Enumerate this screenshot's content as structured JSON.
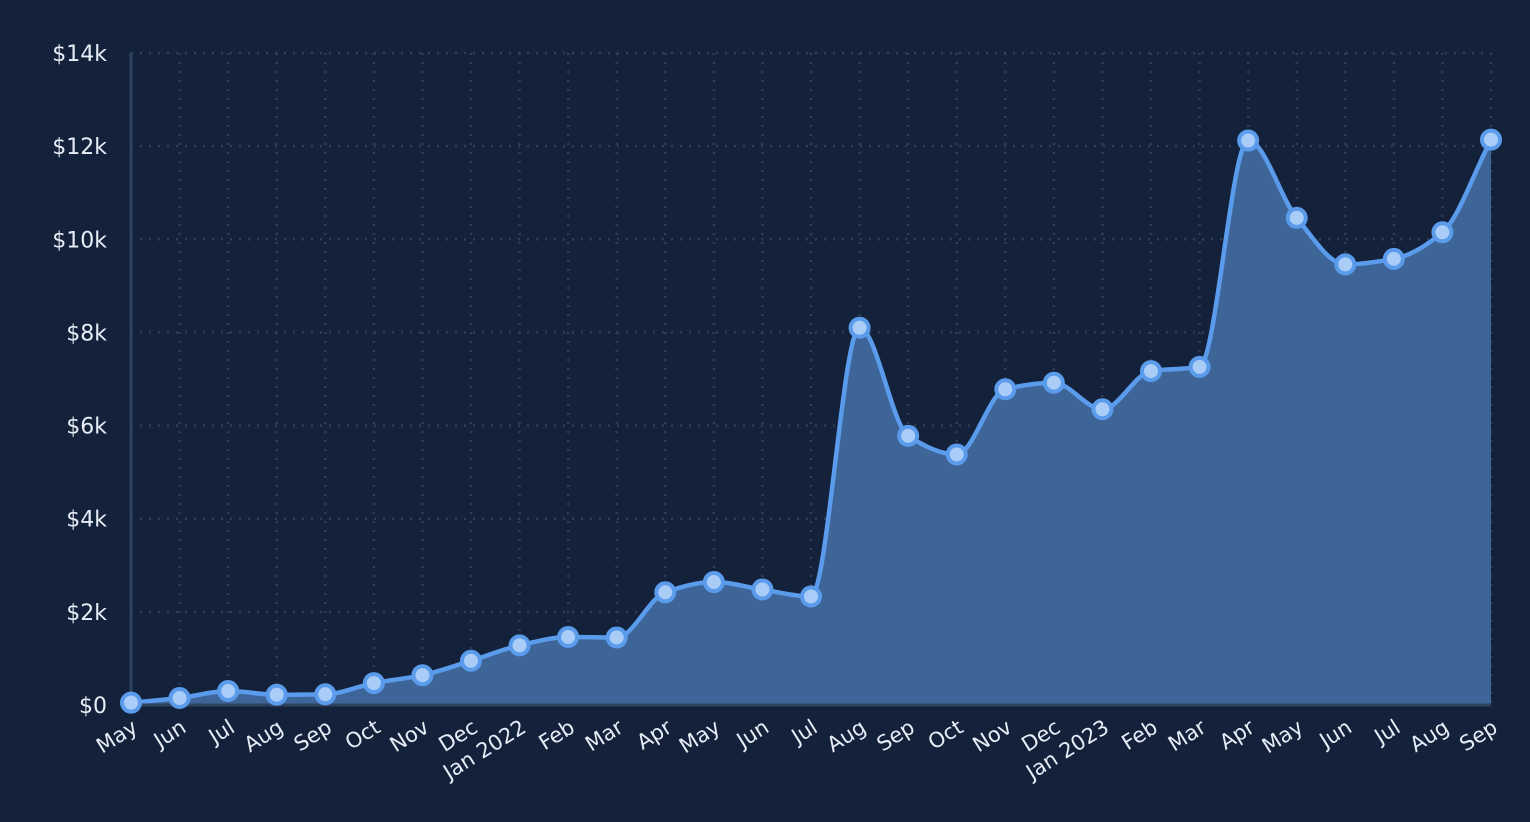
{
  "chart_data": {
    "type": "area",
    "title": "",
    "xlabel": "",
    "ylabel": "",
    "ylim": [
      0,
      14000
    ],
    "y_ticks": [
      "$0",
      "$2k",
      "$4k",
      "$6k",
      "$8k",
      "$10k",
      "$12k",
      "$14k"
    ],
    "y_tick_values": [
      0,
      2000,
      4000,
      6000,
      8000,
      10000,
      12000,
      14000
    ],
    "categories": [
      "May",
      "Jun",
      "Jul",
      "Aug",
      "Sep",
      "Oct",
      "Nov",
      "Dec",
      "Jan 2022",
      "Feb",
      "Mar",
      "Apr",
      "May",
      "Jun",
      "Jul",
      "Aug",
      "Sep",
      "Oct",
      "Nov",
      "Dec",
      "Jan 2023",
      "Feb",
      "Mar",
      "Apr",
      "May",
      "Jun",
      "Jul",
      "Aug",
      "Sep"
    ],
    "series": [
      {
        "values": [
          50,
          150,
          300,
          220,
          230,
          470,
          640,
          950,
          1280,
          1460,
          1450,
          2420,
          2640,
          2480,
          2330,
          8100,
          5780,
          5380,
          6780,
          6920,
          6350,
          7170,
          7260,
          12120,
          10460,
          9460,
          9580,
          10150,
          12140
        ]
      }
    ],
    "grid": true,
    "legend": "none",
    "colors": {
      "background": "#13223a",
      "line": "#5b9bec",
      "area_fill": "#3e6598",
      "marker_fill": "#a9cdf7",
      "marker_stroke": "#5b9bec",
      "grid": "#2d3e58",
      "axis": "#2f4260",
      "text": "#e6edf7"
    }
  }
}
